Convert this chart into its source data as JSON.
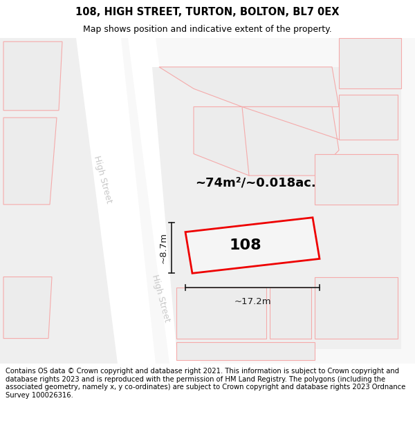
{
  "title": "108, HIGH STREET, TURTON, BOLTON, BL7 0EX",
  "subtitle": "Map shows position and indicative extent of the property.",
  "footer": "Contains OS data © Crown copyright and database right 2021. This information is subject to Crown copyright and database rights 2023 and is reproduced with the permission of HM Land Registry. The polygons (including the associated geometry, namely x, y co-ordinates) are subject to Crown copyright and database rights 2023 Ordnance Survey 100026316.",
  "area_label": "~74m²/~0.018ac.",
  "width_label": "~17.2m",
  "height_label": "~8.7m",
  "number_label": "108",
  "map_bg": "#ffffff",
  "parcel_fill": "#ececec",
  "parcel_edge": "#f5aaaa",
  "road_fill": "#e2e2e2",
  "prop_fill": "#f0f0f0",
  "prop_edge": "#ee0000",
  "street_color": "#c8c8c8",
  "dim_color": "#1a1a1a",
  "title_fontsize": 10.5,
  "subtitle_fontsize": 9,
  "footer_fontsize": 7.2,
  "area_fontsize": 13,
  "num_fontsize": 16,
  "dim_fontsize": 9.5,
  "street_fontsize": 9
}
